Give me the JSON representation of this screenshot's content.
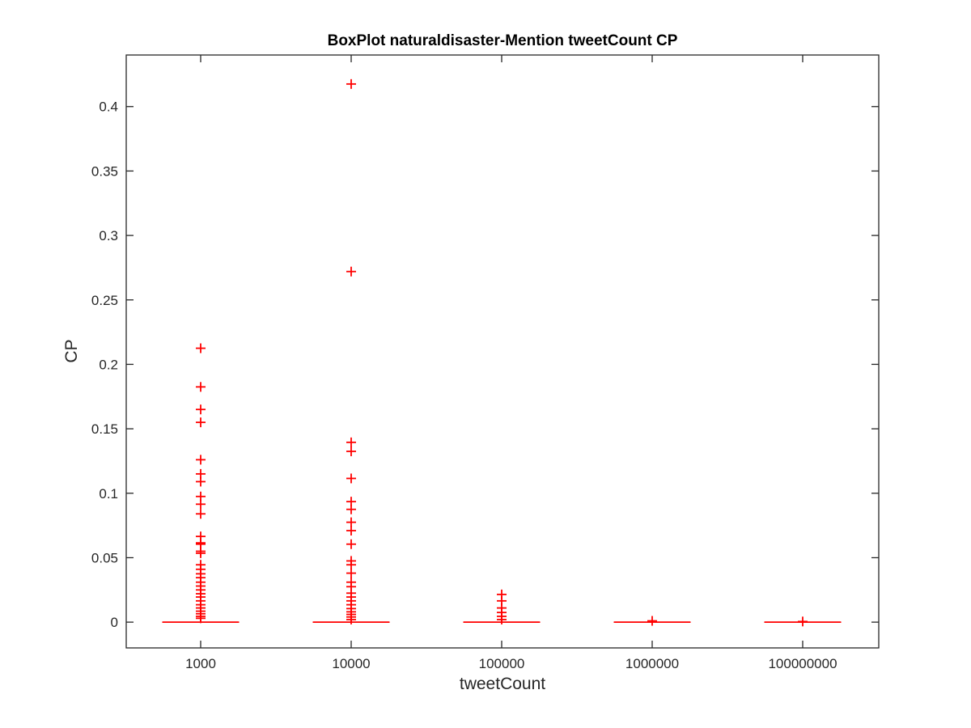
{
  "chart_data": {
    "type": "box",
    "title": "BoxPlot naturaldisaster-Mention tweetCount CP",
    "xlabel": "tweetCount",
    "ylabel": "CP",
    "ylim": [
      -0.02,
      0.44
    ],
    "yticks": [
      0,
      0.05,
      0.1,
      0.15,
      0.2,
      0.25,
      0.3,
      0.35,
      0.4
    ],
    "ytick_labels": [
      "0",
      "0.05",
      "0.1",
      "0.15",
      "0.2",
      "0.25",
      "0.3",
      "0.35",
      "0.4"
    ],
    "categories": [
      "1000",
      "10000",
      "100000",
      "1000000",
      "100000000"
    ],
    "grid": false,
    "color": "#ff0000",
    "boxes": [
      {
        "category": "1000",
        "q1": 0,
        "median": 0,
        "q3": 0,
        "whisker_low": 0,
        "whisker_high": 0,
        "outliers": [
          0.2125,
          0.1825,
          0.165,
          0.155,
          0.126,
          0.115,
          0.109,
          0.0975,
          0.0915,
          0.084,
          0.0665,
          0.0615,
          0.0605,
          0.055,
          0.0535,
          0.0445,
          0.041,
          0.0375,
          0.0345,
          0.031,
          0.028,
          0.025,
          0.022,
          0.0195,
          0.0165,
          0.0135,
          0.011,
          0.0085,
          0.0065,
          0.0045,
          0.003
        ]
      },
      {
        "category": "10000",
        "q1": 0,
        "median": 0,
        "q3": 0,
        "whisker_low": 0,
        "whisker_high": 0,
        "outliers": [
          0.4175,
          0.272,
          0.1395,
          0.1325,
          0.1115,
          0.0935,
          0.0875,
          0.0775,
          0.071,
          0.0605,
          0.0475,
          0.0445,
          0.038,
          0.031,
          0.0275,
          0.0225,
          0.0195,
          0.0165,
          0.0135,
          0.0105,
          0.008,
          0.006,
          0.004,
          0.002
        ]
      },
      {
        "category": "100000",
        "q1": 0,
        "median": 0,
        "q3": 0,
        "whisker_low": 0,
        "whisker_high": 0,
        "outliers": [
          0.0215,
          0.0165,
          0.011,
          0.0075,
          0.0045,
          0.002
        ]
      },
      {
        "category": "1000000",
        "q1": 0,
        "median": 0,
        "q3": 0,
        "whisker_low": 0,
        "whisker_high": 0,
        "outliers": [
          0.001
        ]
      },
      {
        "category": "100000000",
        "q1": 0,
        "median": 0,
        "q3": 0,
        "whisker_low": 0,
        "whisker_high": 0,
        "outliers": [
          0.0005
        ]
      }
    ]
  }
}
